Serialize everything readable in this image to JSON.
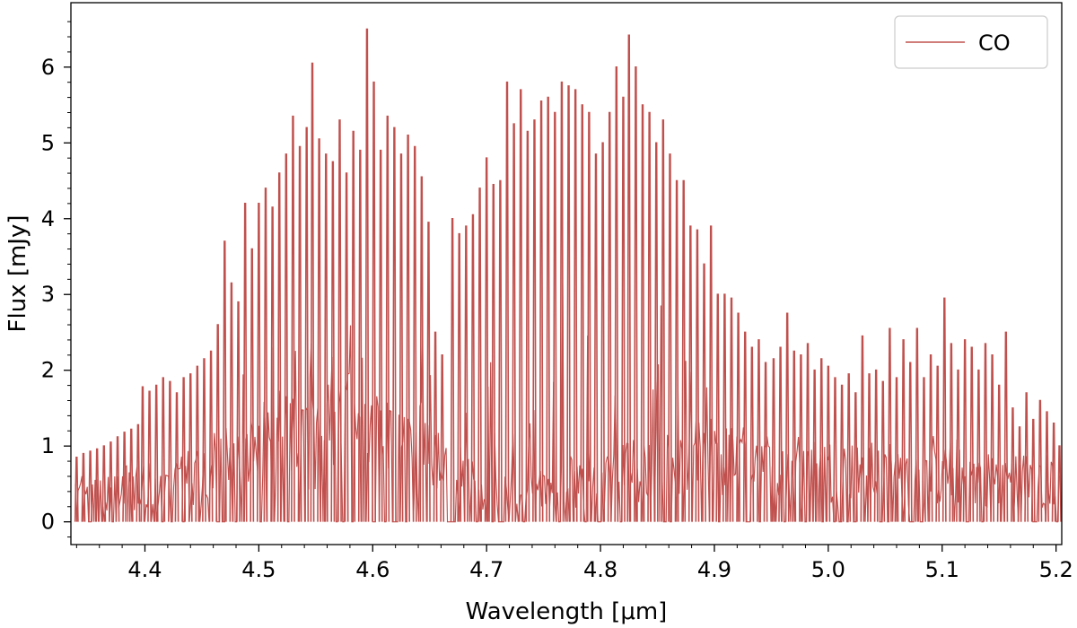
{
  "chart_data": {
    "type": "line",
    "title": "",
    "xlabel": "Wavelength [μm]",
    "ylabel": "Flux [mJy]",
    "xlim": [
      4.335,
      5.205
    ],
    "ylim": [
      -0.3,
      6.85
    ],
    "x_ticks": [
      {
        "value": 4.4,
        "label": "4.4"
      },
      {
        "value": 4.5,
        "label": "4.5"
      },
      {
        "value": 4.6,
        "label": "4.6"
      },
      {
        "value": 4.7,
        "label": "4.7"
      },
      {
        "value": 4.8,
        "label": "4.8"
      },
      {
        "value": 4.9,
        "label": "4.9"
      },
      {
        "value": 5.0,
        "label": "5.0"
      },
      {
        "value": 5.1,
        "label": "5.1"
      },
      {
        "value": 5.2,
        "label": "5.2"
      }
    ],
    "y_ticks": [
      {
        "value": 0,
        "label": "0"
      },
      {
        "value": 1,
        "label": "1"
      },
      {
        "value": 2,
        "label": "2"
      },
      {
        "value": 3,
        "label": "3"
      },
      {
        "value": 4,
        "label": "4"
      },
      {
        "value": 5,
        "label": "5"
      },
      {
        "value": 6,
        "label": "6"
      }
    ],
    "grid": false,
    "legend": {
      "position": "top-right"
    },
    "series": [
      {
        "name": "CO",
        "color": "#c0504d",
        "lines": [
          {
            "x": 4.34,
            "y": 0.85
          },
          {
            "x": 4.346,
            "y": 0.9
          },
          {
            "x": 4.352,
            "y": 0.93
          },
          {
            "x": 4.358,
            "y": 0.96
          },
          {
            "x": 4.364,
            "y": 1.0
          },
          {
            "x": 4.37,
            "y": 1.05
          },
          {
            "x": 4.376,
            "y": 1.12
          },
          {
            "x": 4.382,
            "y": 1.18
          },
          {
            "x": 4.388,
            "y": 1.22
          },
          {
            "x": 4.394,
            "y": 1.28
          },
          {
            "x": 4.398,
            "y": 1.78
          },
          {
            "x": 4.404,
            "y": 1.72
          },
          {
            "x": 4.41,
            "y": 1.8
          },
          {
            "x": 4.416,
            "y": 1.9
          },
          {
            "x": 4.422,
            "y": 1.85
          },
          {
            "x": 4.428,
            "y": 1.7
          },
          {
            "x": 4.434,
            "y": 1.9
          },
          {
            "x": 4.44,
            "y": 1.95
          },
          {
            "x": 4.446,
            "y": 2.05
          },
          {
            "x": 4.452,
            "y": 2.15
          },
          {
            "x": 4.458,
            "y": 2.25
          },
          {
            "x": 4.464,
            "y": 2.6
          },
          {
            "x": 4.47,
            "y": 3.7
          },
          {
            "x": 4.476,
            "y": 3.15
          },
          {
            "x": 4.482,
            "y": 2.9
          },
          {
            "x": 4.488,
            "y": 4.2
          },
          {
            "x": 4.494,
            "y": 3.6
          },
          {
            "x": 4.5,
            "y": 4.2
          },
          {
            "x": 4.506,
            "y": 4.4
          },
          {
            "x": 4.512,
            "y": 4.15
          },
          {
            "x": 4.518,
            "y": 4.6
          },
          {
            "x": 4.524,
            "y": 4.85
          },
          {
            "x": 4.53,
            "y": 5.35
          },
          {
            "x": 4.536,
            "y": 4.95
          },
          {
            "x": 4.542,
            "y": 5.2
          },
          {
            "x": 4.547,
            "y": 6.05
          },
          {
            "x": 4.553,
            "y": 5.05
          },
          {
            "x": 4.559,
            "y": 4.85
          },
          {
            "x": 4.565,
            "y": 4.75
          },
          {
            "x": 4.571,
            "y": 5.3
          },
          {
            "x": 4.577,
            "y": 4.6
          },
          {
            "x": 4.583,
            "y": 5.15
          },
          {
            "x": 4.589,
            "y": 4.9
          },
          {
            "x": 4.595,
            "y": 6.5
          },
          {
            "x": 4.601,
            "y": 5.8
          },
          {
            "x": 4.607,
            "y": 4.9
          },
          {
            "x": 4.613,
            "y": 5.35
          },
          {
            "x": 4.619,
            "y": 5.2
          },
          {
            "x": 4.625,
            "y": 4.85
          },
          {
            "x": 4.631,
            "y": 5.1
          },
          {
            "x": 4.637,
            "y": 4.95
          },
          {
            "x": 4.643,
            "y": 4.55
          },
          {
            "x": 4.649,
            "y": 3.95
          },
          {
            "x": 4.655,
            "y": 2.5
          },
          {
            "x": 4.661,
            "y": 2.2
          },
          {
            "x": 4.67,
            "y": 4.0
          },
          {
            "x": 4.676,
            "y": 3.8
          },
          {
            "x": 4.682,
            "y": 3.9
          },
          {
            "x": 4.688,
            "y": 4.05
          },
          {
            "x": 4.694,
            "y": 4.4
          },
          {
            "x": 4.7,
            "y": 4.8
          },
          {
            "x": 4.706,
            "y": 4.45
          },
          {
            "x": 4.712,
            "y": 4.5
          },
          {
            "x": 4.718,
            "y": 5.8
          },
          {
            "x": 4.724,
            "y": 5.25
          },
          {
            "x": 4.73,
            "y": 5.7
          },
          {
            "x": 4.736,
            "y": 5.15
          },
          {
            "x": 4.742,
            "y": 5.3
          },
          {
            "x": 4.748,
            "y": 5.55
          },
          {
            "x": 4.754,
            "y": 5.6
          },
          {
            "x": 4.76,
            "y": 5.4
          },
          {
            "x": 4.766,
            "y": 5.8
          },
          {
            "x": 4.772,
            "y": 5.75
          },
          {
            "x": 4.778,
            "y": 5.7
          },
          {
            "x": 4.784,
            "y": 5.5
          },
          {
            "x": 4.79,
            "y": 5.4
          },
          {
            "x": 4.796,
            "y": 4.85
          },
          {
            "x": 4.802,
            "y": 5.0
          },
          {
            "x": 4.808,
            "y": 5.4
          },
          {
            "x": 4.814,
            "y": 6.0
          },
          {
            "x": 4.82,
            "y": 5.6
          },
          {
            "x": 4.825,
            "y": 6.42
          },
          {
            "x": 4.831,
            "y": 6.0
          },
          {
            "x": 4.837,
            "y": 5.5
          },
          {
            "x": 4.843,
            "y": 5.4
          },
          {
            "x": 4.849,
            "y": 5.0
          },
          {
            "x": 4.855,
            "y": 5.3
          },
          {
            "x": 4.861,
            "y": 4.85
          },
          {
            "x": 4.867,
            "y": 4.5
          },
          {
            "x": 4.873,
            "y": 4.5
          },
          {
            "x": 4.879,
            "y": 3.9
          },
          {
            "x": 4.885,
            "y": 3.85
          },
          {
            "x": 4.891,
            "y": 3.4
          },
          {
            "x": 4.897,
            "y": 3.9
          },
          {
            "x": 4.903,
            "y": 3.0
          },
          {
            "x": 4.909,
            "y": 3.0
          },
          {
            "x": 4.915,
            "y": 2.95
          },
          {
            "x": 4.921,
            "y": 2.75
          },
          {
            "x": 4.927,
            "y": 2.5
          },
          {
            "x": 4.933,
            "y": 2.3
          },
          {
            "x": 4.939,
            "y": 2.4
          },
          {
            "x": 4.945,
            "y": 2.1
          },
          {
            "x": 4.952,
            "y": 2.15
          },
          {
            "x": 4.958,
            "y": 2.3
          },
          {
            "x": 4.964,
            "y": 2.75
          },
          {
            "x": 4.97,
            "y": 2.25
          },
          {
            "x": 4.976,
            "y": 2.2
          },
          {
            "x": 4.982,
            "y": 2.35
          },
          {
            "x": 4.988,
            "y": 2.0
          },
          {
            "x": 4.994,
            "y": 2.15
          },
          {
            "x": 5.0,
            "y": 2.05
          },
          {
            "x": 5.006,
            "y": 1.9
          },
          {
            "x": 5.012,
            "y": 1.8
          },
          {
            "x": 5.018,
            "y": 1.95
          },
          {
            "x": 5.024,
            "y": 1.7
          },
          {
            "x": 5.03,
            "y": 2.45
          },
          {
            "x": 5.036,
            "y": 1.95
          },
          {
            "x": 5.042,
            "y": 2.0
          },
          {
            "x": 5.048,
            "y": 1.85
          },
          {
            "x": 5.054,
            "y": 2.55
          },
          {
            "x": 5.06,
            "y": 1.9
          },
          {
            "x": 5.066,
            "y": 2.4
          },
          {
            "x": 5.072,
            "y": 2.1
          },
          {
            "x": 5.078,
            "y": 2.55
          },
          {
            "x": 5.084,
            "y": 1.9
          },
          {
            "x": 5.09,
            "y": 2.2
          },
          {
            "x": 5.096,
            "y": 2.05
          },
          {
            "x": 5.102,
            "y": 2.95
          },
          {
            "x": 5.108,
            "y": 2.35
          },
          {
            "x": 5.114,
            "y": 2.0
          },
          {
            "x": 5.12,
            "y": 2.4
          },
          {
            "x": 5.126,
            "y": 2.3
          },
          {
            "x": 5.132,
            "y": 2.0
          },
          {
            "x": 5.138,
            "y": 2.35
          },
          {
            "x": 5.144,
            "y": 2.2
          },
          {
            "x": 5.15,
            "y": 1.8
          },
          {
            "x": 5.156,
            "y": 2.5
          },
          {
            "x": 5.162,
            "y": 1.5
          },
          {
            "x": 5.168,
            "y": 1.25
          },
          {
            "x": 5.174,
            "y": 1.7
          },
          {
            "x": 5.18,
            "y": 1.35
          },
          {
            "x": 5.186,
            "y": 1.6
          },
          {
            "x": 5.192,
            "y": 1.45
          },
          {
            "x": 5.198,
            "y": 1.3
          },
          {
            "x": 5.203,
            "y": 1.0
          }
        ],
        "background": [
          {
            "x": 4.34,
            "y": 0.5
          },
          {
            "x": 4.37,
            "y": 0.6
          },
          {
            "x": 4.4,
            "y": 0.6
          },
          {
            "x": 4.43,
            "y": 0.7
          },
          {
            "x": 4.46,
            "y": 0.9
          },
          {
            "x": 4.49,
            "y": 1.2
          },
          {
            "x": 4.52,
            "y": 1.4
          },
          {
            "x": 4.55,
            "y": 1.5
          },
          {
            "x": 4.58,
            "y": 1.6
          },
          {
            "x": 4.61,
            "y": 1.5
          },
          {
            "x": 4.64,
            "y": 1.3
          },
          {
            "x": 4.67,
            "y": 0.9
          },
          {
            "x": 4.7,
            "y": 0.6
          },
          {
            "x": 4.73,
            "y": 0.5
          },
          {
            "x": 4.76,
            "y": 0.6
          },
          {
            "x": 4.79,
            "y": 0.8
          },
          {
            "x": 4.82,
            "y": 0.9
          },
          {
            "x": 4.85,
            "y": 1.0
          },
          {
            "x": 4.88,
            "y": 1.0
          },
          {
            "x": 4.91,
            "y": 1.05
          },
          {
            "x": 4.94,
            "y": 1.0
          },
          {
            "x": 4.97,
            "y": 0.95
          },
          {
            "x": 5.0,
            "y": 0.9
          },
          {
            "x": 5.03,
            "y": 0.85
          },
          {
            "x": 5.06,
            "y": 0.85
          },
          {
            "x": 5.09,
            "y": 0.8
          },
          {
            "x": 5.12,
            "y": 0.8
          },
          {
            "x": 5.15,
            "y": 0.75
          },
          {
            "x": 5.18,
            "y": 0.75
          },
          {
            "x": 5.203,
            "y": 0.7
          }
        ]
      }
    ]
  }
}
